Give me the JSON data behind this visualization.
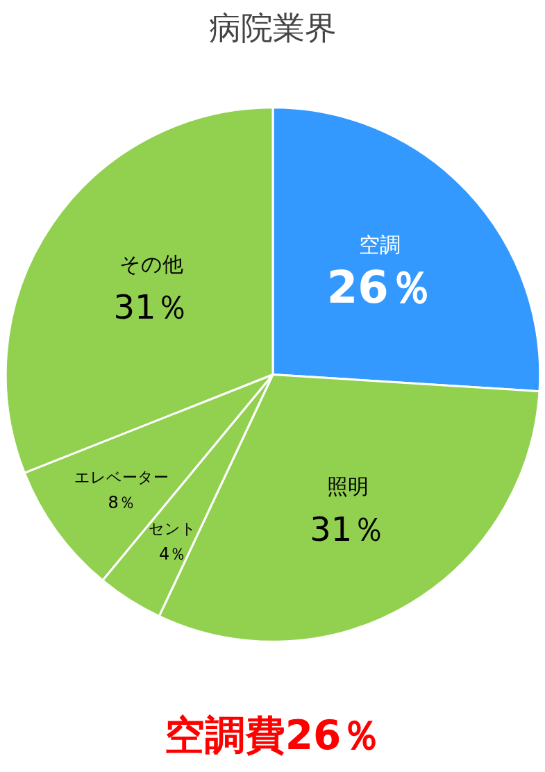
{
  "chart_data": {
    "type": "pie",
    "title": "病院業界",
    "categories": [
      "空調",
      "照明",
      "セント",
      "エレベーター",
      "その他"
    ],
    "values": [
      26,
      31,
      4,
      8,
      31
    ],
    "value_labels": [
      "26％",
      "31％",
      "4％",
      "8％",
      "31％"
    ],
    "colors": [
      "#3399ff",
      "#92d050",
      "#92d050",
      "#92d050",
      "#92d050"
    ],
    "annotations": [
      "空調費26％"
    ]
  }
}
